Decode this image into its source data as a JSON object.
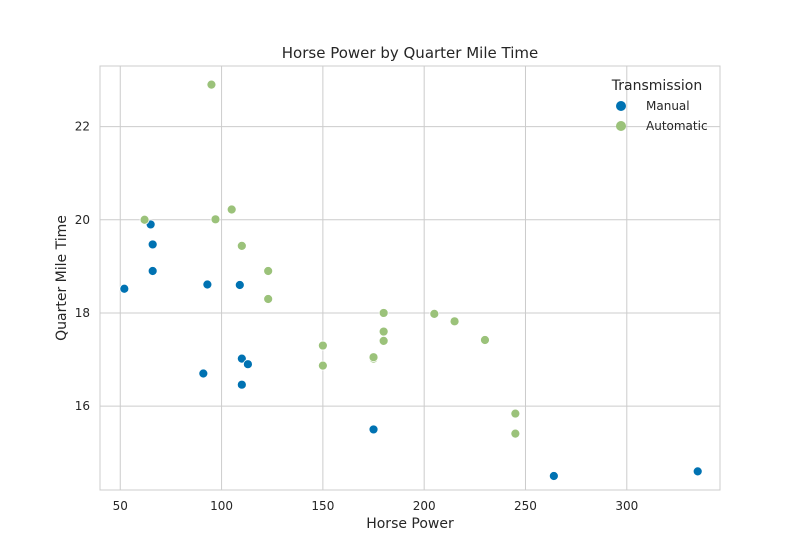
{
  "chart_data": {
    "type": "scatter",
    "title": "Horse Power by Quarter Mile Time",
    "xlabel": "Horse Power",
    "ylabel": "Quarter Mile Time",
    "xlim": [
      40,
      346
    ],
    "ylim": [
      14.2,
      23.3
    ],
    "xticks": [
      50,
      100,
      150,
      200,
      250,
      300
    ],
    "yticks": [
      16,
      18,
      20,
      22
    ],
    "grid": true,
    "legend": {
      "title": "Transmission",
      "placement": "top-right"
    },
    "series": [
      {
        "name": "Manual",
        "color": "#0072B2",
        "points": [
          {
            "x": 52,
            "y": 18.52
          },
          {
            "x": 65,
            "y": 19.9
          },
          {
            "x": 66,
            "y": 19.47
          },
          {
            "x": 66,
            "y": 18.9
          },
          {
            "x": 91,
            "y": 16.7
          },
          {
            "x": 93,
            "y": 18.61
          },
          {
            "x": 109,
            "y": 18.6
          },
          {
            "x": 110,
            "y": 17.02
          },
          {
            "x": 110,
            "y": 16.46
          },
          {
            "x": 113,
            "y": 16.9
          },
          {
            "x": 175,
            "y": 15.5
          },
          {
            "x": 264,
            "y": 14.5
          },
          {
            "x": 335,
            "y": 14.6
          }
        ]
      },
      {
        "name": "Automatic",
        "color": "#9BC27A",
        "points": [
          {
            "x": 62,
            "y": 20.0
          },
          {
            "x": 95,
            "y": 22.9
          },
          {
            "x": 97,
            "y": 20.01
          },
          {
            "x": 105,
            "y": 20.22
          },
          {
            "x": 110,
            "y": 19.44
          },
          {
            "x": 123,
            "y": 18.9
          },
          {
            "x": 123,
            "y": 18.3
          },
          {
            "x": 150,
            "y": 17.3
          },
          {
            "x": 150,
            "y": 16.87
          },
          {
            "x": 175,
            "y": 17.02
          },
          {
            "x": 175,
            "y": 17.05
          },
          {
            "x": 180,
            "y": 18.0
          },
          {
            "x": 180,
            "y": 17.6
          },
          {
            "x": 180,
            "y": 17.4
          },
          {
            "x": 205,
            "y": 17.98
          },
          {
            "x": 215,
            "y": 17.82
          },
          {
            "x": 230,
            "y": 17.42
          },
          {
            "x": 245,
            "y": 15.84
          },
          {
            "x": 245,
            "y": 15.41
          }
        ]
      }
    ]
  }
}
